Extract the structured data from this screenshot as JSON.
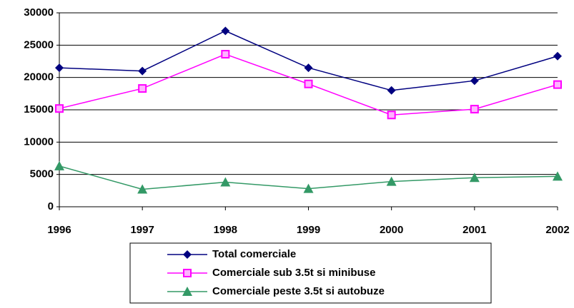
{
  "chart_data": {
    "type": "line",
    "categories": [
      "1996",
      "1997",
      "1998",
      "1999",
      "2000",
      "2001",
      "2002"
    ],
    "series": [
      {
        "name": "Total comerciale",
        "color": "#000080",
        "marker": "diamond",
        "values": [
          21500,
          21000,
          27200,
          21500,
          18000,
          19500,
          23300
        ]
      },
      {
        "name": "Comerciale sub 3.5t si minibuse",
        "color": "#ff00ff",
        "marker": "square",
        "values": [
          15200,
          18300,
          23600,
          19000,
          14200,
          15100,
          18900
        ]
      },
      {
        "name": "Comerciale peste 3.5t si autobuze",
        "color": "#339966",
        "marker": "triangle",
        "values": [
          6300,
          2700,
          3800,
          2800,
          3900,
          4500,
          4700
        ]
      }
    ],
    "ylim": [
      0,
      30000
    ],
    "yticks": [
      0,
      5000,
      10000,
      15000,
      20000,
      25000,
      30000
    ],
    "grid": true,
    "legend": "bottom"
  }
}
